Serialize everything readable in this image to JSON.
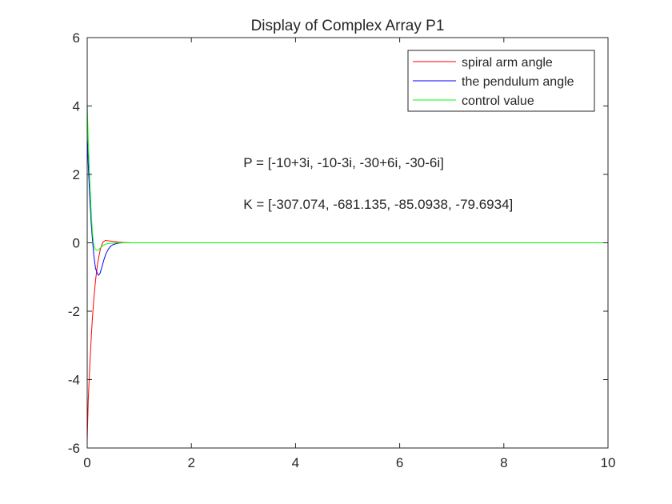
{
  "chart_data": {
    "type": "line",
    "title": "Display of Complex Array P1",
    "xlabel": "",
    "ylabel": "",
    "xlim": [
      0,
      10
    ],
    "ylim": [
      -6,
      6
    ],
    "xticks": [
      0,
      2,
      4,
      6,
      8,
      10
    ],
    "yticks": [
      -6,
      -4,
      -2,
      0,
      2,
      4,
      6
    ],
    "xtick_labels": [
      "0",
      "2",
      "4",
      "6",
      "8",
      "10"
    ],
    "ytick_labels": [
      "-6",
      "-4",
      "-2",
      "0",
      "2",
      "4",
      "6"
    ],
    "grid": false,
    "legend_position": "top-right",
    "series": [
      {
        "name": "spiral arm angle",
        "color": "#ff0000",
        "x": [
          0,
          0.02,
          0.05,
          0.08,
          0.1,
          0.13,
          0.16,
          0.2,
          0.25,
          0.3,
          0.35,
          0.4,
          0.45,
          0.5,
          0.6,
          0.7,
          0.85,
          1.0,
          1.5,
          2,
          4,
          6,
          8,
          10
        ],
        "y": [
          -5.8,
          -4.6,
          -3.6,
          -2.7,
          -2.2,
          -1.6,
          -1.1,
          -0.6,
          -0.2,
          0.02,
          0.07,
          0.06,
          0.05,
          0.04,
          0.02,
          0.01,
          0,
          0,
          0,
          0,
          0,
          0,
          0,
          0
        ]
      },
      {
        "name": "the pendulum angle",
        "color": "#0000ff",
        "x": [
          0,
          0.02,
          0.05,
          0.08,
          0.1,
          0.13,
          0.16,
          0.2,
          0.22,
          0.25,
          0.28,
          0.32,
          0.36,
          0.4,
          0.45,
          0.5,
          0.6,
          0.7,
          0.85,
          1.0,
          1.5,
          2,
          4,
          6,
          8,
          10
        ],
        "y": [
          3.2,
          2.3,
          1.3,
          0.5,
          0.1,
          -0.4,
          -0.75,
          -0.92,
          -0.95,
          -0.88,
          -0.72,
          -0.5,
          -0.32,
          -0.2,
          -0.1,
          -0.05,
          -0.01,
          0,
          0,
          0,
          0,
          0,
          0,
          0,
          0,
          0
        ]
      },
      {
        "name": "control value",
        "color": "#00ff00",
        "x": [
          0,
          0.02,
          0.05,
          0.08,
          0.1,
          0.12,
          0.15,
          0.18,
          0.22,
          0.26,
          0.3,
          0.35,
          0.4,
          0.5,
          0.6,
          0.8,
          1.0,
          1.5,
          2,
          4,
          6,
          8,
          10
        ],
        "y": [
          4.1,
          3.0,
          1.8,
          0.8,
          0.3,
          0,
          -0.18,
          -0.22,
          -0.2,
          -0.14,
          -0.08,
          -0.04,
          -0.02,
          -0.01,
          0,
          0,
          0,
          0,
          0,
          0,
          0,
          0,
          0
        ]
      }
    ],
    "annotations": [
      {
        "text": "P = [-10+3i, -10-3i, -30+6i, -30-6i]",
        "x": 3.0,
        "y": 2.35
      },
      {
        "text": "K = [-307.074, -681.135, -85.0938, -79.6934]",
        "x": 3.0,
        "y": 1.13
      }
    ]
  }
}
